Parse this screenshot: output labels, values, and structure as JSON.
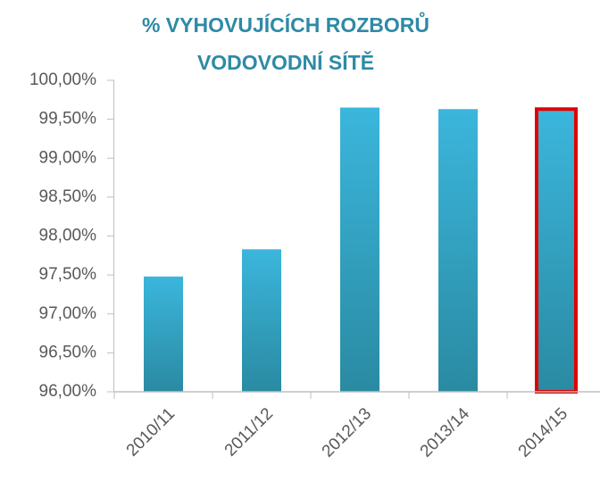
{
  "chart_data": {
    "type": "bar",
    "title": [
      "% VYHOVUJÍCÍCH ROZBORŮ",
      "VODOVODNÍ SÍTĚ"
    ],
    "categories": [
      "2010/11",
      "2011/12",
      "2012/13",
      "2013/14",
      "2014/15"
    ],
    "values": [
      97.48,
      97.83,
      99.65,
      99.63,
      99.63
    ],
    "color": "#35a8c9",
    "highlight": 4,
    "highlight_color": "#e00000",
    "ylim": [
      96,
      100
    ],
    "yticks": [
      {
        "value": 96,
        "label": "96,00%"
      },
      {
        "value": 96.5,
        "label": "96,50%"
      },
      {
        "value": 97,
        "label": "97,00%"
      },
      {
        "value": 97.5,
        "label": "97,50%"
      },
      {
        "value": 98,
        "label": "98,00%"
      },
      {
        "value": 98.5,
        "label": "98,50%"
      },
      {
        "value": 99,
        "label": "99,00%"
      },
      {
        "value": 99.5,
        "label": "99,50%"
      },
      {
        "value": 100,
        "label": "100,00%"
      }
    ],
    "grid": false
  }
}
